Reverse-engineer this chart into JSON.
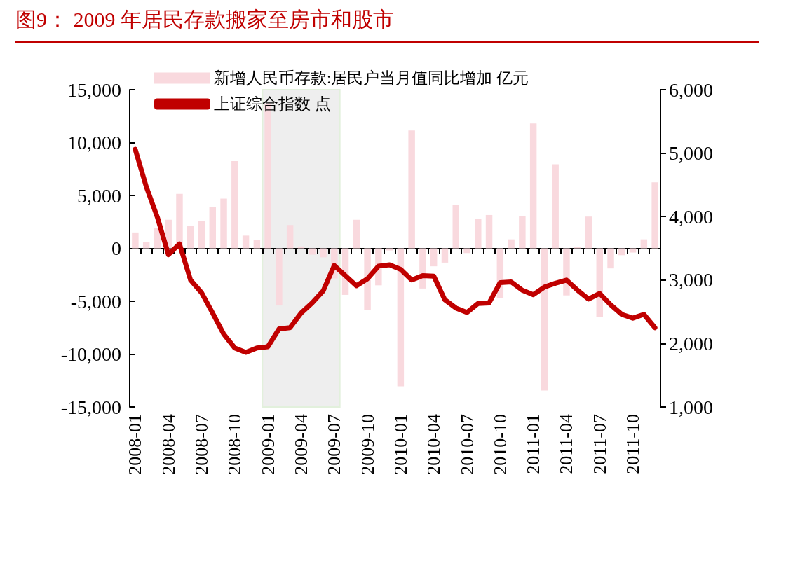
{
  "chart_data": {
    "type": "bar",
    "title": "图9： 2009 年居民存款搬家至房市和股市",
    "categories": [
      "2008-01",
      null,
      null,
      "2008-04",
      null,
      null,
      "2008-07",
      null,
      null,
      "2008-10",
      null,
      null,
      "2009-01",
      null,
      null,
      "2009-04",
      null,
      null,
      "2009-07",
      null,
      null,
      "2009-10",
      null,
      null,
      "2010-01",
      null,
      null,
      "2010-04",
      null,
      null,
      "2010-07",
      null,
      null,
      "2010-10",
      null,
      null,
      "2011-01",
      null,
      null,
      "2011-04",
      null,
      null,
      "2011-07",
      null,
      null,
      "2011-10",
      null,
      null
    ],
    "series": [
      {
        "name": "新增人民币存款:居民户当月值同比增加 亿元",
        "color": "#f9d9de",
        "values": [
          1500,
          620,
          1900,
          2700,
          5150,
          2100,
          2600,
          3900,
          4700,
          8250,
          1200,
          780,
          13700,
          -5400,
          2200,
          180,
          -600,
          -850,
          -2850,
          -4400,
          2700,
          -5850,
          -3500,
          -200,
          -13050,
          11150,
          -3800,
          -1700,
          -1350,
          4100,
          -450,
          2750,
          3150,
          -4700,
          850,
          3050,
          11800,
          -13450,
          7950,
          -4450,
          100,
          3000,
          -6450,
          -1900,
          -650,
          -400,
          850,
          6250
        ]
      },
      {
        "name": "上证综合指数 点",
        "type": "line",
        "axis": "y2",
        "color": "#c00000",
        "values": [
          5060,
          4470,
          3990,
          3400,
          3570,
          3000,
          2800,
          2480,
          2150,
          1930,
          1860,
          1930,
          1950,
          2230,
          2250,
          2480,
          2640,
          2830,
          3230,
          3070,
          2910,
          3020,
          3220,
          3240,
          3170,
          3000,
          3070,
          3060,
          2690,
          2560,
          2490,
          2630,
          2640,
          2960,
          2970,
          2840,
          2770,
          2890,
          2950,
          3000,
          2840,
          2700,
          2790,
          2610,
          2460,
          2400,
          2460,
          2250
        ]
      }
    ],
    "ylim": [
      -15000,
      15000
    ],
    "yticks": [
      {
        "value": -15000,
        "label": "-15,000"
      },
      {
        "value": -10000,
        "label": "-10,000"
      },
      {
        "value": -5000,
        "label": "-5,000"
      },
      0,
      {
        "value": 5000,
        "label": "5,000"
      },
      {
        "value": 10000,
        "label": "10,000"
      },
      {
        "value": 15000,
        "label": "15,000"
      }
    ],
    "y2lim": [
      1000,
      6000
    ],
    "y2ticks": [
      {
        "value": 1000,
        "label": "1,000"
      },
      {
        "value": 2000,
        "label": "2,000"
      },
      {
        "value": 3000,
        "label": "3,000"
      },
      {
        "value": 4000,
        "label": "4,000"
      },
      {
        "value": 5000,
        "label": "5,000"
      },
      {
        "value": 6000,
        "label": "6,000"
      }
    ],
    "bands": [
      {
        "axis": "x",
        "from": "2009-01",
        "to": "2009-07",
        "color": "#eeeeee"
      }
    ],
    "legend": "top left",
    "marker": "none",
    "line_style": "solid"
  }
}
